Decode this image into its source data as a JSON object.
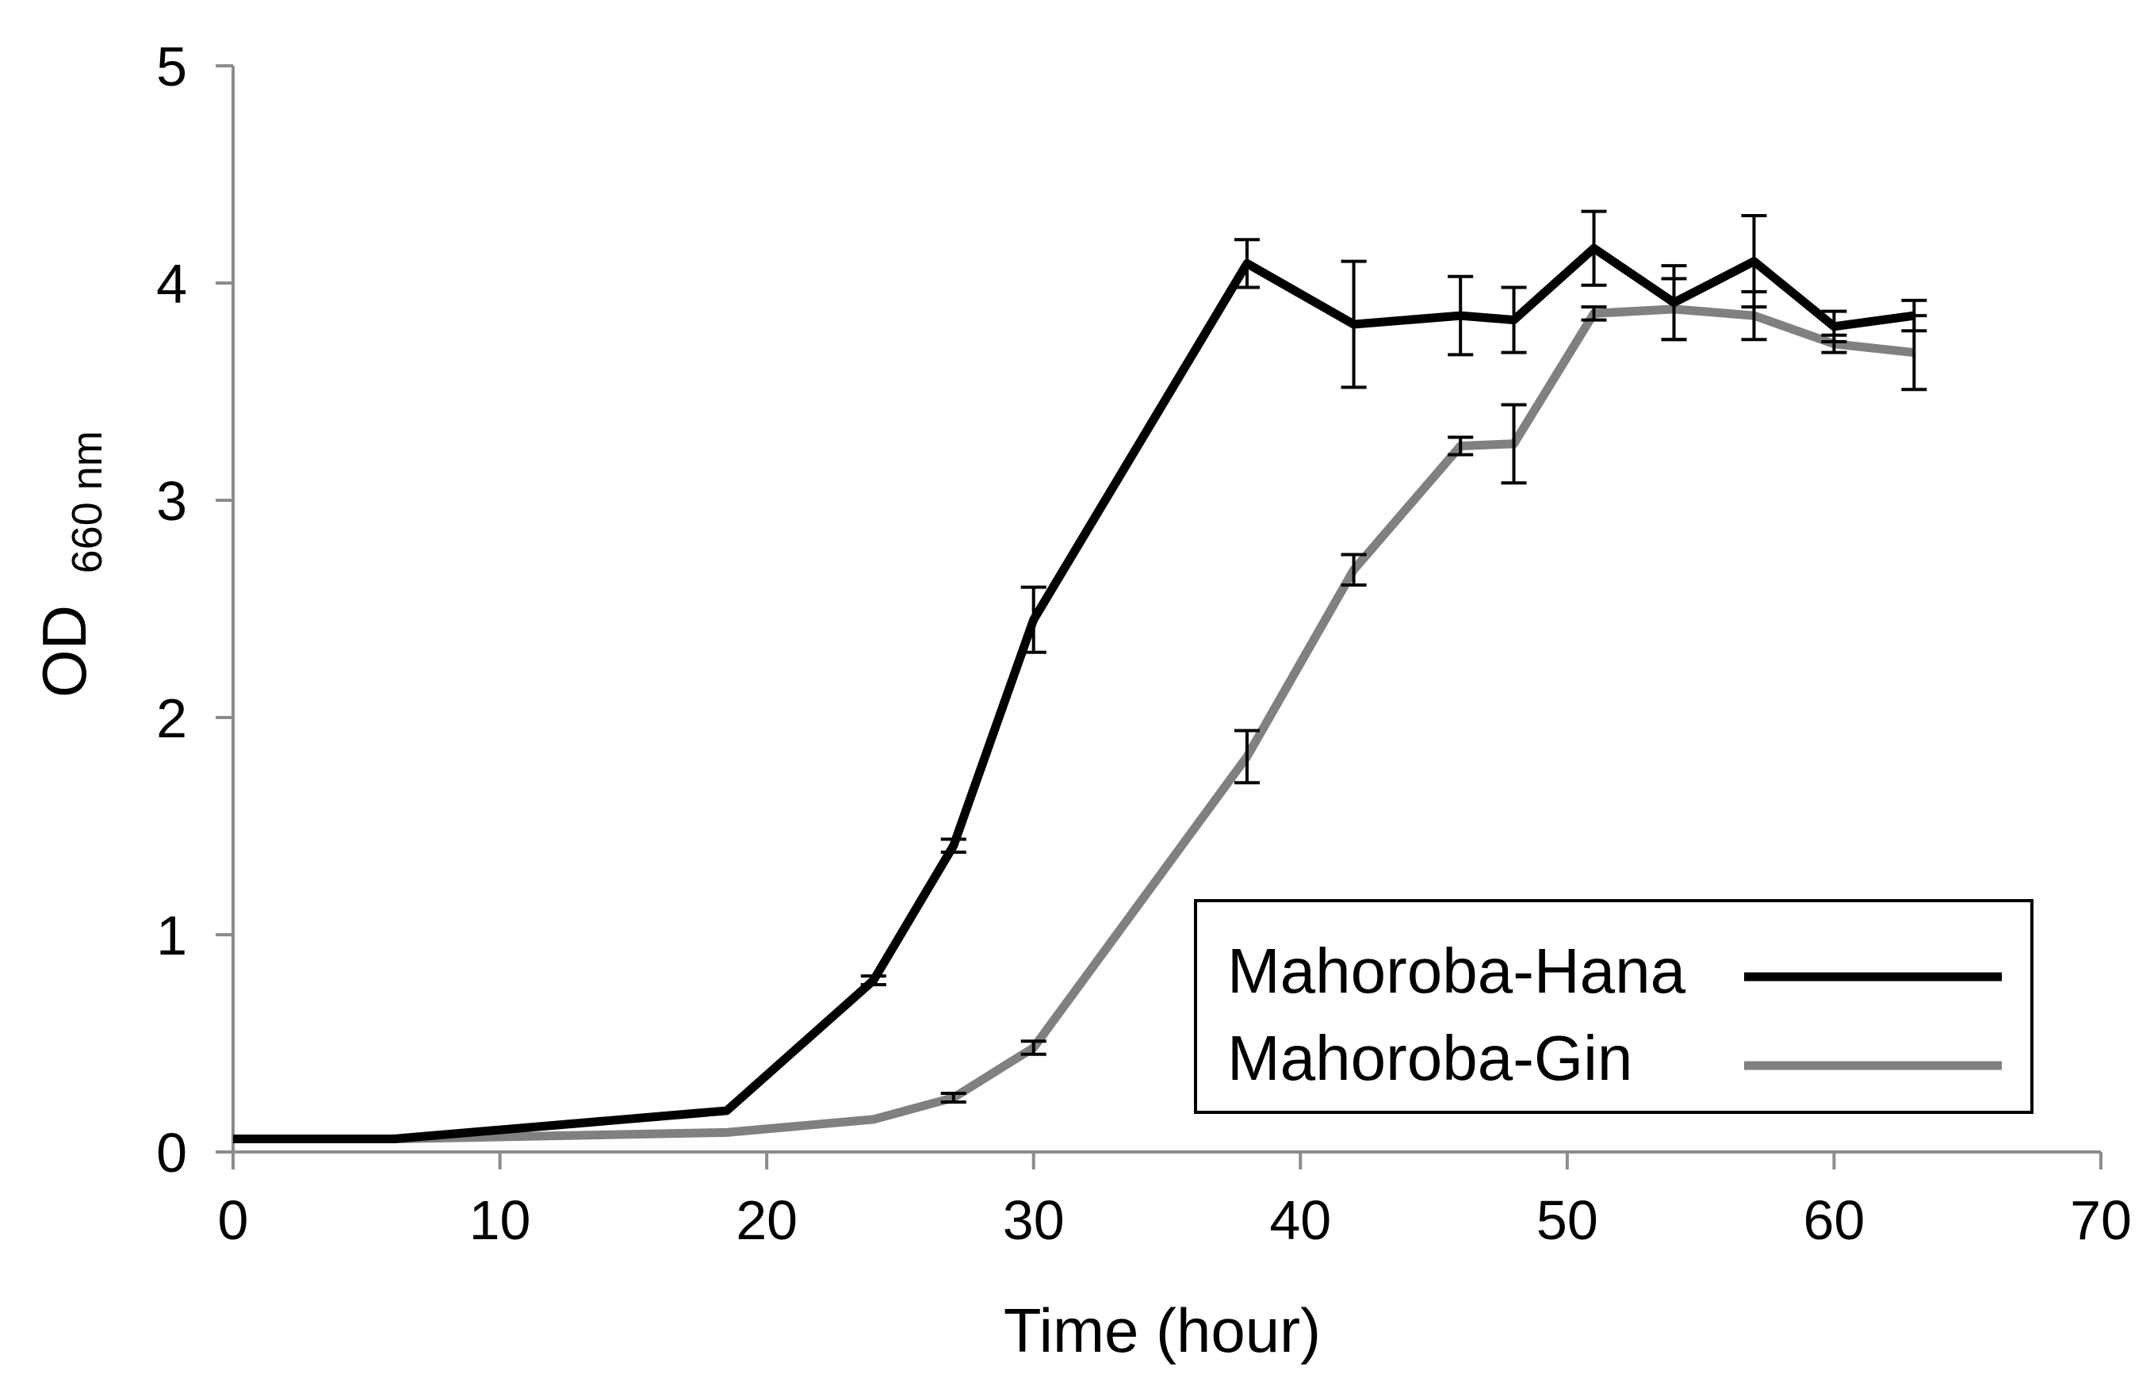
{
  "chart_data": {
    "type": "line",
    "title": "",
    "xlabel": "Time (hour)",
    "ylabel": "OD",
    "ylabel_subscript": "660 nm",
    "xlim": [
      0,
      70
    ],
    "ylim": [
      0,
      5
    ],
    "xticks": [
      0,
      10,
      20,
      30,
      40,
      50,
      60,
      70
    ],
    "yticks": [
      0,
      1,
      2,
      3,
      4,
      5
    ],
    "grid": false,
    "legend_position": "bottom-right",
    "series": [
      {
        "name": "Mahoroba-Hana",
        "color": "#000000",
        "x": [
          0,
          6,
          18.5,
          24,
          27,
          30,
          38,
          42,
          46,
          48,
          51,
          54,
          57,
          60,
          63
        ],
        "y": [
          0.06,
          0.06,
          0.19,
          0.79,
          1.41,
          2.45,
          4.09,
          3.81,
          3.85,
          3.83,
          4.16,
          3.91,
          4.1,
          3.8,
          3.85
        ],
        "err": [
          0,
          0,
          0,
          0.02,
          0.03,
          0.15,
          0.11,
          0.29,
          0.18,
          0.15,
          0.17,
          0.17,
          0.21,
          0.07,
          0.07
        ]
      },
      {
        "name": "Mahoroba-Gin",
        "color": "#808080",
        "x": [
          0,
          6,
          18.5,
          24,
          27,
          30,
          38,
          42,
          46,
          48,
          51,
          54,
          57,
          60,
          63
        ],
        "y": [
          0.06,
          0.06,
          0.09,
          0.15,
          0.25,
          0.48,
          1.82,
          2.68,
          3.25,
          3.26,
          3.86,
          3.88,
          3.85,
          3.72,
          3.68
        ],
        "err": [
          0,
          0,
          0,
          0,
          0.02,
          0.03,
          0.12,
          0.07,
          0.04,
          0.18,
          0.03,
          0.14,
          0.11,
          0.04,
          0.17
        ]
      }
    ]
  }
}
